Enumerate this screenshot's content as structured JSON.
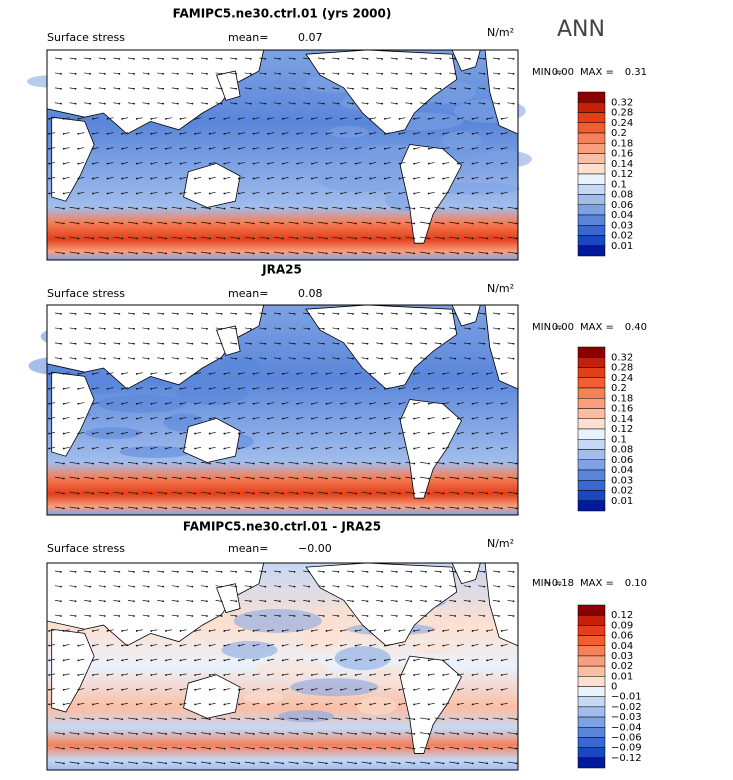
{
  "header": {
    "season": "ANN"
  },
  "panels": [
    {
      "title": "FAMIPC5.ne30.ctrl.01 (yrs 2000)",
      "variable": "Surface stress",
      "mean_label": "mean=",
      "mean": "0.07",
      "units": "N/m²",
      "min_label": "MIN =",
      "min": "0.00",
      "max_label": "MAX =",
      "max": "0.31",
      "colorbar_labels": [
        "0.32",
        "0.28",
        "0.24",
        "0.2",
        "0.18",
        "0.16",
        "0.14",
        "0.12",
        "0.1",
        "0.08",
        "0.06",
        "0.04",
        "0.03",
        "0.02",
        "0.01"
      ],
      "colorbar_colors": [
        "#8b0000",
        "#c4200a",
        "#e2401a",
        "#f0602e",
        "#f5805a",
        "#f8a07e",
        "#fbbea4",
        "#fde0d0",
        "#eaf2fc",
        "#c6d8f4",
        "#a2bdec",
        "#7ea2e4",
        "#5a86da",
        "#3868d0",
        "#1a48c2",
        "#001a9c"
      ]
    },
    {
      "title": "JRA25",
      "variable": "Surface stress",
      "mean_label": "mean=",
      "mean": "0.08",
      "units": "N/m²",
      "min_label": "MIN =",
      "min": "0.00",
      "max_label": "MAX =",
      "max": "0.40",
      "colorbar_labels": [
        "0.32",
        "0.28",
        "0.24",
        "0.2",
        "0.18",
        "0.16",
        "0.14",
        "0.12",
        "0.1",
        "0.08",
        "0.06",
        "0.04",
        "0.03",
        "0.02",
        "0.01"
      ],
      "colorbar_colors": [
        "#8b0000",
        "#c4200a",
        "#e2401a",
        "#f0602e",
        "#f5805a",
        "#f8a07e",
        "#fbbea4",
        "#fde0d0",
        "#eaf2fc",
        "#c6d8f4",
        "#a2bdec",
        "#7ea2e4",
        "#5a86da",
        "#3868d0",
        "#1a48c2",
        "#001a9c"
      ]
    },
    {
      "title": "FAMIPC5.ne30.ctrl.01 - JRA25",
      "variable": "Surface stress",
      "mean_label": "mean=",
      "mean": "−0.00",
      "units": "N/m²",
      "min_label": "MIN =",
      "min": "−0.18",
      "max_label": "MAX =",
      "max": "0.10",
      "colorbar_labels": [
        "0.12",
        "0.09",
        "0.06",
        "0.04",
        "0.03",
        "0.02",
        "0.01",
        "0",
        "−0.01",
        "−0.02",
        "−0.03",
        "−0.04",
        "−0.06",
        "−0.09",
        "−0.12"
      ],
      "colorbar_colors": [
        "#8b0000",
        "#c4200a",
        "#e2401a",
        "#f0602e",
        "#f5805a",
        "#f8a07e",
        "#fbbea4",
        "#fde0d0",
        "#eaf2fc",
        "#c6d8f4",
        "#a2bdec",
        "#7ea2e4",
        "#5a86da",
        "#3868d0",
        "#1a48c2",
        "#001a9c"
      ]
    }
  ]
}
